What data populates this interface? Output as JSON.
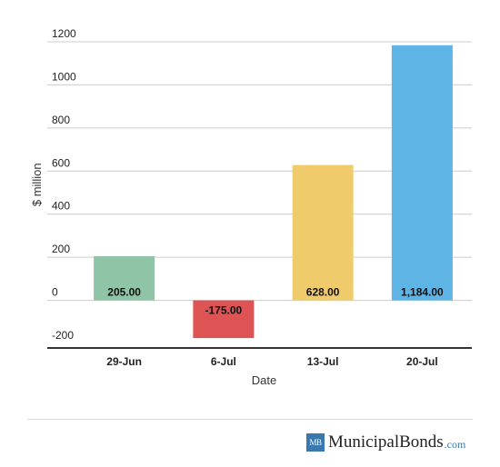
{
  "chart_data": {
    "type": "bar",
    "categories": [
      "29-Jun",
      "6-Jul",
      "13-Jul",
      "20-Jul"
    ],
    "values": [
      205,
      -175,
      628,
      1184
    ],
    "data_labels": [
      "205.00",
      "-175.00",
      "628.00",
      "1,184.00"
    ],
    "colors": [
      "#8fc4a6",
      "#de5454",
      "#f0cb6b",
      "#5eb4e5"
    ],
    "title": "",
    "xlabel": "Date",
    "ylabel": "$ million",
    "ylim": [
      -200,
      1200
    ],
    "yticks": [
      -200,
      0,
      200,
      400,
      600,
      800,
      1000,
      1200
    ],
    "grid": true,
    "legend": "none"
  },
  "branding": {
    "mark": "MB",
    "name": "MunicipalBonds",
    "tld": ".com"
  }
}
